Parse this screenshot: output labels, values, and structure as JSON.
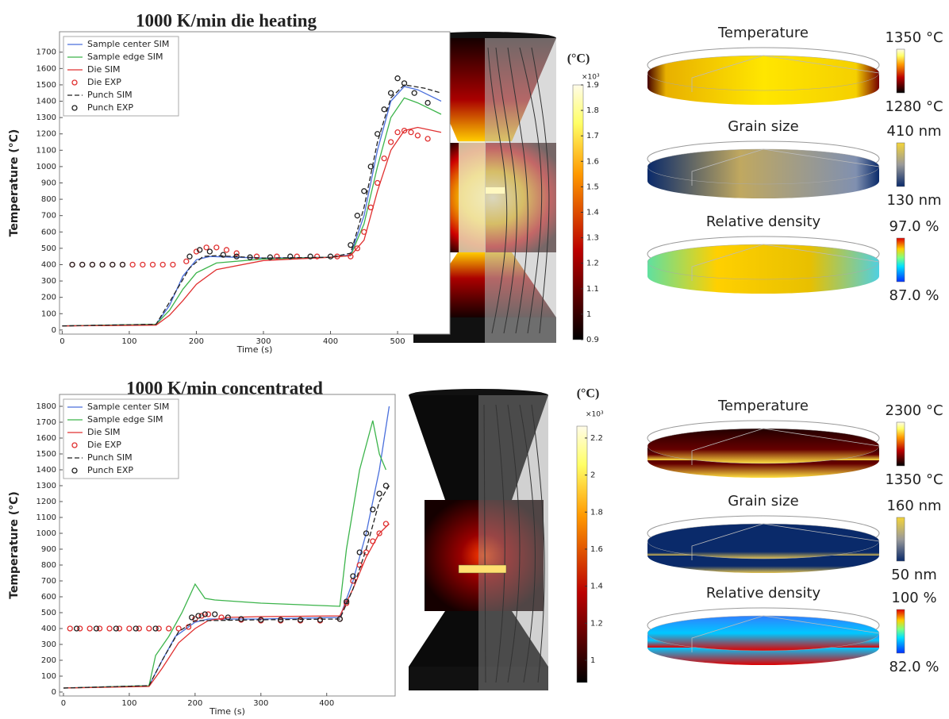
{
  "chart_data": [
    {
      "type": "line",
      "title": "1000 K/min die heating",
      "xlabel": "Time (s)",
      "ylabel": "Temperature (°C)",
      "xlim": [
        -4,
        578
      ],
      "ylim": [
        -25,
        1825
      ],
      "xticks": [
        0,
        100,
        200,
        300,
        400,
        500
      ],
      "yticks": [
        0,
        100,
        200,
        300,
        400,
        500,
        600,
        700,
        800,
        900,
        1000,
        1100,
        1200,
        1300,
        1400,
        1500,
        1600,
        1700
      ],
      "legend": "upper left",
      "series": [
        {
          "name": "Sample center SIM",
          "color": "#4a6fdc",
          "style": "solid",
          "x": [
            0,
            140,
            160,
            180,
            200,
            220,
            300,
            400,
            430,
            450,
            470,
            490,
            510,
            530,
            565
          ],
          "values": [
            25,
            35,
            150,
            330,
            430,
            450,
            440,
            445,
            460,
            700,
            1100,
            1400,
            1490,
            1470,
            1400
          ]
        },
        {
          "name": "Sample edge SIM",
          "color": "#3cb44b",
          "style": "solid",
          "x": [
            0,
            140,
            160,
            180,
            200,
            230,
            300,
            400,
            430,
            450,
            470,
            490,
            510,
            530,
            565
          ],
          "values": [
            25,
            35,
            120,
            250,
            350,
            410,
            435,
            445,
            455,
            650,
            1000,
            1300,
            1420,
            1390,
            1320
          ]
        },
        {
          "name": "Die SIM",
          "color": "#e03030",
          "style": "solid",
          "x": [
            0,
            140,
            160,
            180,
            200,
            230,
            300,
            400,
            430,
            450,
            470,
            490,
            510,
            530,
            565
          ],
          "values": [
            25,
            30,
            90,
            180,
            280,
            370,
            425,
            445,
            455,
            550,
            850,
            1100,
            1220,
            1240,
            1210
          ]
        },
        {
          "name": "Die EXP",
          "color": "#e03030",
          "style": "markers",
          "x": [
            15,
            30,
            45,
            60,
            75,
            90,
            105,
            120,
            135,
            150,
            165,
            185,
            200,
            215,
            230,
            245,
            260,
            290,
            320,
            350,
            380,
            410,
            430,
            440,
            450,
            460,
            470,
            480,
            490,
            500,
            510,
            520,
            530,
            545
          ],
          "values": [
            400,
            400,
            400,
            400,
            400,
            400,
            400,
            400,
            400,
            400,
            400,
            420,
            480,
            505,
            505,
            490,
            470,
            450,
            450,
            450,
            450,
            450,
            450,
            500,
            600,
            750,
            900,
            1050,
            1150,
            1210,
            1220,
            1210,
            1190,
            1170
          ]
        },
        {
          "name": "Punch SIM",
          "color": "#222222",
          "style": "dashed",
          "x": [
            0,
            140,
            160,
            190,
            210,
            230,
            300,
            400,
            430,
            450,
            470,
            490,
            510,
            540,
            565
          ],
          "values": [
            25,
            35,
            170,
            380,
            450,
            455,
            440,
            445,
            470,
            750,
            1150,
            1420,
            1500,
            1480,
            1450
          ]
        },
        {
          "name": "Punch EXP",
          "color": "#222222",
          "style": "markers",
          "x": [
            15,
            30,
            45,
            60,
            75,
            90,
            190,
            205,
            220,
            240,
            260,
            280,
            310,
            340,
            370,
            400,
            430,
            440,
            450,
            460,
            470,
            480,
            490,
            500,
            510,
            525,
            545
          ],
          "values": [
            400,
            400,
            400,
            400,
            400,
            400,
            450,
            490,
            480,
            460,
            450,
            445,
            445,
            450,
            450,
            450,
            520,
            700,
            850,
            1000,
            1200,
            1350,
            1450,
            1540,
            1510,
            1450,
            1390
          ]
        }
      ]
    },
    {
      "type": "line",
      "title": "1000 K/min concentrated",
      "xlabel": "Time (s)",
      "ylabel": "Temperature (°C)",
      "xlim": [
        -6,
        504
      ],
      "ylim": [
        -25,
        1875
      ],
      "xticks": [
        0,
        100,
        200,
        300,
        400
      ],
      "yticks": [
        0,
        100,
        200,
        300,
        400,
        500,
        600,
        700,
        800,
        900,
        1000,
        1100,
        1200,
        1300,
        1400,
        1500,
        1600,
        1700,
        1800
      ],
      "legend": "upper left",
      "series": [
        {
          "name": "Sample center SIM",
          "color": "#4a6fdc",
          "style": "solid",
          "x": [
            0,
            130,
            150,
            170,
            200,
            220,
            300,
            420,
            440,
            460,
            480,
            495
          ],
          "values": [
            25,
            40,
            200,
            350,
            440,
            460,
            460,
            470,
            700,
            1000,
            1400,
            1800
          ]
        },
        {
          "name": "Sample edge SIM",
          "color": "#3cb44b",
          "style": "solid",
          "x": [
            0,
            130,
            140,
            160,
            180,
            200,
            215,
            230,
            300,
            420,
            430,
            450,
            470,
            480,
            490
          ],
          "values": [
            25,
            40,
            230,
            350,
            500,
            680,
            590,
            580,
            560,
            540,
            900,
            1400,
            1710,
            1500,
            1400
          ]
        },
        {
          "name": "Die SIM",
          "color": "#e03030",
          "style": "solid",
          "x": [
            0,
            130,
            150,
            175,
            200,
            220,
            250,
            300,
            420,
            440,
            460,
            480,
            495
          ],
          "values": [
            25,
            35,
            150,
            310,
            400,
            450,
            470,
            475,
            480,
            650,
            850,
            1000,
            1060
          ]
        },
        {
          "name": "Die EXP",
          "color": "#e03030",
          "style": "markers",
          "x": [
            10,
            25,
            40,
            55,
            70,
            85,
            100,
            115,
            130,
            145,
            160,
            175,
            190,
            200,
            210,
            220,
            240,
            270,
            300,
            330,
            360,
            390,
            420,
            430,
            440,
            450,
            460,
            470,
            480,
            490
          ],
          "values": [
            400,
            400,
            400,
            400,
            400,
            400,
            400,
            400,
            400,
            400,
            400,
            400,
            410,
            460,
            480,
            490,
            470,
            455,
            450,
            450,
            450,
            450,
            460,
            560,
            700,
            800,
            880,
            950,
            1000,
            1060
          ]
        },
        {
          "name": "Punch SIM",
          "color": "#222222",
          "style": "dashed",
          "x": [
            0,
            130,
            150,
            175,
            200,
            220,
            300,
            420,
            440,
            460,
            480,
            495
          ],
          "values": [
            25,
            40,
            200,
            380,
            450,
            450,
            455,
            460,
            650,
            900,
            1200,
            1300
          ]
        },
        {
          "name": "Punch EXP",
          "color": "#222222",
          "style": "markers",
          "x": [
            20,
            50,
            80,
            110,
            140,
            195,
            205,
            215,
            230,
            250,
            270,
            300,
            330,
            360,
            390,
            420,
            430,
            440,
            450,
            460,
            470,
            480,
            490
          ],
          "values": [
            400,
            400,
            400,
            400,
            400,
            470,
            480,
            490,
            490,
            470,
            460,
            455,
            455,
            455,
            455,
            460,
            570,
            730,
            880,
            1000,
            1150,
            1250,
            1300
          ]
        }
      ]
    }
  ],
  "colorbars": [
    {
      "unit": "(°C)",
      "exponent": "×10³",
      "lim": [
        0.9,
        1.9
      ],
      "ticks": [
        0.9,
        1,
        1.1,
        1.2,
        1.3,
        1.4,
        1.5,
        1.6,
        1.7,
        1.8,
        1.9
      ]
    },
    {
      "unit": "(°C)",
      "exponent": "×10³",
      "lim": [
        0.88,
        2.264
      ],
      "ticks": [
        1,
        1.2,
        1.4,
        1.6,
        1.8,
        2,
        2.2
      ]
    }
  ],
  "discs": [
    [
      {
        "label": "Temperature",
        "max": "1350 °C",
        "min": "1280 °C"
      },
      {
        "label": "Grain size",
        "max": "410 nm",
        "min": "130 nm"
      },
      {
        "label": "Relative density",
        "max": "97.0 %",
        "min": "87.0 %"
      }
    ],
    [
      {
        "label": "Temperature",
        "max": "2300 °C",
        "min": "1350 °C"
      },
      {
        "label": "Grain size",
        "max": "160 nm",
        "min": "50 nm"
      },
      {
        "label": "Relative density",
        "max": "100 %",
        "min": "82.0 %"
      }
    ]
  ]
}
